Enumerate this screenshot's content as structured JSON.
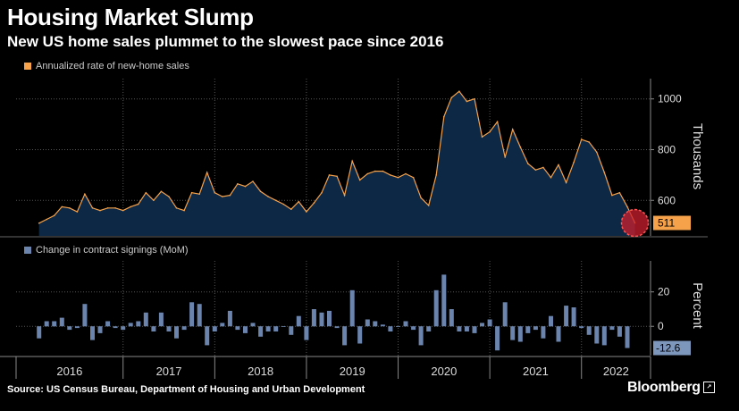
{
  "header": {
    "title": "Housing Market Slump",
    "subtitle": "New US home sales plummet to the slowest pace since 2016"
  },
  "footer": {
    "source": "Source: US Census Bureau, Department of Housing and Urban Development",
    "brand": "Bloomberg",
    "brand_icon": "external-link-icon"
  },
  "colors": {
    "line": "#f5a24b",
    "area": "#0d2844",
    "bar": "#6b84ad",
    "highlight_circle": "#cc1f2e",
    "label_orange": "#f5a24b",
    "label_blue": "#7d96bc"
  },
  "chart_data": [
    {
      "type": "area",
      "legend": "Annualized rate of new-home sales",
      "ylabel": "Thousands",
      "ylim": [
        460,
        1080
      ],
      "yticks": [
        600,
        800,
        1000
      ],
      "x_start": 2016.0,
      "x_step": 0.08333,
      "last_value_label": "511",
      "values": [
        510,
        525,
        540,
        575,
        570,
        555,
        625,
        570,
        560,
        570,
        570,
        560,
        575,
        585,
        630,
        600,
        635,
        615,
        570,
        560,
        630,
        625,
        710,
        630,
        615,
        620,
        665,
        655,
        675,
        635,
        615,
        600,
        585,
        565,
        595,
        555,
        590,
        630,
        700,
        695,
        620,
        755,
        680,
        705,
        715,
        715,
        700,
        690,
        705,
        690,
        610,
        580,
        700,
        930,
        1005,
        1030,
        990,
        1000,
        850,
        870,
        910,
        770,
        880,
        810,
        745,
        720,
        730,
        690,
        740,
        670,
        750,
        840,
        830,
        790,
        710,
        620,
        630,
        575,
        511
      ]
    },
    {
      "type": "bar",
      "legend": "Change in contract signings (MoM)",
      "ylabel": "Percent",
      "ylim": [
        -17,
        38
      ],
      "yticks": [
        0,
        20
      ],
      "x_start": 2016.0,
      "x_step": 0.08333,
      "last_value_label": "-12.6",
      "values": [
        -7,
        3,
        3,
        5,
        -2,
        -1,
        13,
        -8,
        -4,
        3,
        -1,
        -2,
        2,
        3,
        8,
        -3,
        8,
        -3,
        -7,
        -2,
        14,
        13,
        -11,
        -3,
        2,
        9,
        -2,
        -4,
        2,
        -6,
        -3,
        -3,
        0,
        -5,
        6,
        -8,
        10,
        8,
        9,
        -1,
        -11,
        21,
        -10,
        4,
        3,
        1,
        -3,
        0,
        3,
        -2,
        -11,
        -3,
        21,
        30,
        10,
        -3,
        -3,
        -4,
        2,
        4,
        -14,
        14,
        -8,
        -9,
        -4,
        -2,
        -7,
        6,
        -9,
        12,
        11,
        -1,
        -5,
        -10,
        -11,
        -2,
        -6,
        -12.6
      ]
    }
  ],
  "x_axis": {
    "labels": [
      "2016",
      "2017",
      "2018",
      "2019",
      "2020",
      "2021",
      "2022"
    ]
  }
}
